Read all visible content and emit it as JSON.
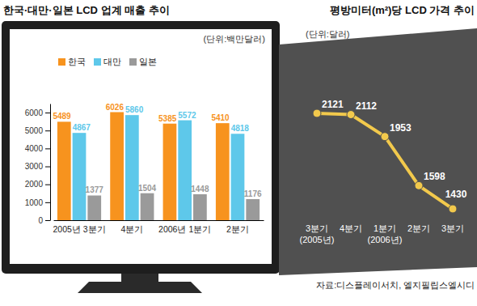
{
  "chart_data": [
    {
      "type": "bar",
      "title": "한국·대만·일본 LCD 업계 매출 추이",
      "subtitle": "(단위:백만달러)",
      "categories": [
        "2005년 3분기",
        "4분기",
        "2006년 1분기",
        "2분기"
      ],
      "series": [
        {
          "name": "한국",
          "color": "#f7931e",
          "values": [
            5489,
            6026,
            5385,
            5410
          ]
        },
        {
          "name": "대만",
          "color": "#5ec8ea",
          "values": [
            4867,
            5860,
            5572,
            4818
          ]
        },
        {
          "name": "일본",
          "color": "#9a9a9a",
          "values": [
            1377,
            1504,
            1448,
            1176
          ]
        }
      ],
      "ylim": [
        0,
        6500
      ],
      "yticks": [
        0,
        1000,
        2000,
        3000,
        4000,
        5000,
        6000
      ],
      "grid": false,
      "legend": "top-left",
      "data_labels": true
    },
    {
      "type": "line",
      "title": "평방미터(m²)당 LCD 가격 추이",
      "subtitle": "(단위:달러)",
      "categories": [
        "3분기 (2005년)",
        "4분기",
        "1분기 (2006년)",
        "2분기",
        "3분기"
      ],
      "values": [
        2121,
        2112,
        1953,
        1598,
        1430
      ],
      "color": "#f2c94c",
      "marker": "circle",
      "data_labels": true,
      "tick_labels": false
    }
  ],
  "source": "자료:디스플레이서치, 엘지필립스엘시디"
}
